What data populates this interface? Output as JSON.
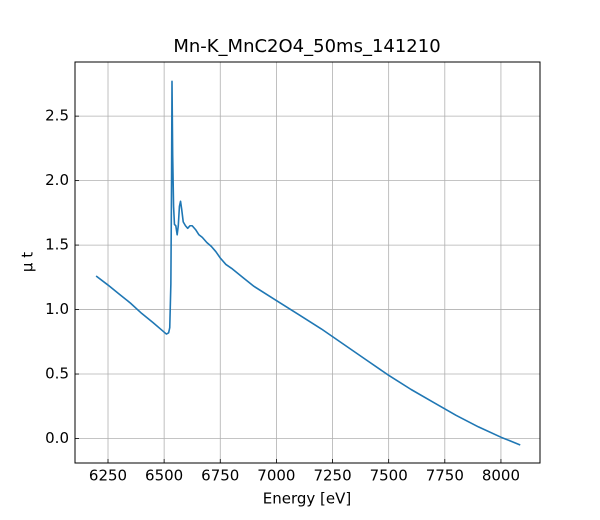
{
  "chart_data": {
    "type": "line",
    "title": "Mn-K_MnC2O4_50ms_141210",
    "x_label": "Energy [eV]",
    "y_label": "μ t",
    "x": [
      6197,
      6250,
      6300,
      6350,
      6400,
      6450,
      6490,
      6510,
      6520,
      6525,
      6530,
      6533,
      6535,
      6538,
      6542,
      6546,
      6552,
      6558,
      6563,
      6568,
      6573,
      6578,
      6585,
      6595,
      6605,
      6615,
      6625,
      6640,
      6655,
      6670,
      6690,
      6710,
      6730,
      6750,
      6775,
      6800,
      6850,
      6900,
      7000,
      7100,
      7200,
      7300,
      7400,
      7500,
      7600,
      7700,
      7800,
      7900,
      8000,
      8086
    ],
    "series": [
      {
        "name": "μ t",
        "color": "#1f77b4",
        "values": [
          1.26,
          1.19,
          1.12,
          1.05,
          0.97,
          0.9,
          0.84,
          0.81,
          0.82,
          0.86,
          1.2,
          2.0,
          2.77,
          2.2,
          1.8,
          1.66,
          1.65,
          1.58,
          1.65,
          1.8,
          1.84,
          1.78,
          1.68,
          1.65,
          1.63,
          1.65,
          1.65,
          1.62,
          1.58,
          1.56,
          1.52,
          1.49,
          1.45,
          1.4,
          1.35,
          1.32,
          1.25,
          1.18,
          1.07,
          0.96,
          0.85,
          0.73,
          0.61,
          0.49,
          0.38,
          0.28,
          0.18,
          0.09,
          0.01,
          -0.05
        ]
      }
    ],
    "xlim": [
      6103,
      8174
    ],
    "ylim": [
      -0.19,
      2.92
    ],
    "xticks": [
      6250,
      6500,
      6750,
      7000,
      7250,
      7500,
      7750,
      8000
    ],
    "yticks": [
      {
        "value": 0,
        "label": "0.0"
      },
      0.5,
      {
        "value": 1,
        "label": "1.0"
      },
      1.5,
      {
        "value": 2,
        "label": "2.0"
      },
      2.5
    ],
    "grid": true
  }
}
